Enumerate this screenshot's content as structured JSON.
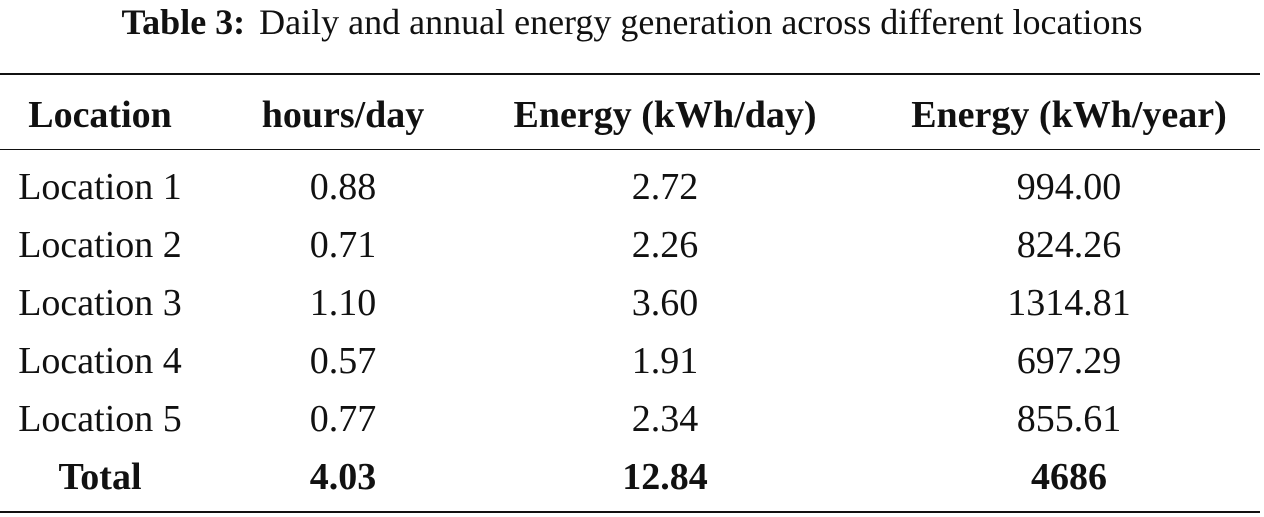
{
  "caption": {
    "label": "Table 3:",
    "text": "Daily and annual energy generation across different locations"
  },
  "table": {
    "columns": [
      "Location",
      "hours/day",
      "Energy (kWh/day)",
      "Energy (kWh/year)"
    ],
    "rows": [
      [
        "Location 1",
        "0.88",
        "2.72",
        "994.00"
      ],
      [
        "Location 2",
        "0.71",
        "2.26",
        "824.26"
      ],
      [
        "Location 3",
        "1.10",
        "3.60",
        "1314.81"
      ],
      [
        "Location 4",
        "0.57",
        "1.91",
        "697.29"
      ],
      [
        "Location 5",
        "0.77",
        "2.34",
        "855.61"
      ]
    ],
    "total": [
      "Total",
      "4.03",
      "12.84",
      "4686"
    ]
  }
}
